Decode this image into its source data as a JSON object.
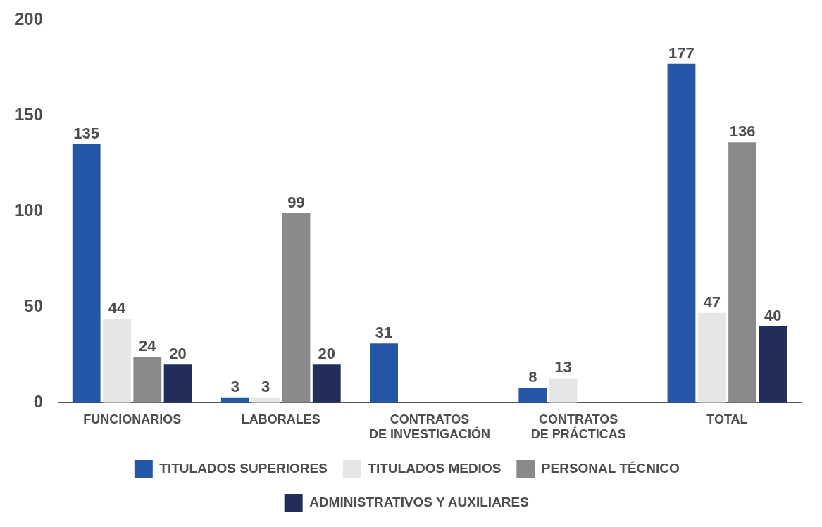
{
  "chart_data": {
    "type": "bar",
    "categories": [
      "FUNCIONARIOS",
      "LABORALES",
      "CONTRATOS DE INVESTIGACIÓN",
      "CONTRATOS DE PRÁCTICAS",
      "TOTAL"
    ],
    "series": [
      {
        "name": "TITULADOS SUPERIORES",
        "color": "#2657a6",
        "values": [
          135,
          3,
          31,
          8,
          177
        ],
        "value_labels": [
          "135",
          "3",
          "31",
          "8",
          "177"
        ]
      },
      {
        "name": "TITULADOS MEDIOS",
        "color": "#e6e6e6",
        "values": [
          44,
          3,
          0,
          13,
          47
        ],
        "value_labels": [
          "44",
          "3",
          null,
          "13",
          "47"
        ]
      },
      {
        "name": "PERSONAL TÉCNICO",
        "color": "#8a898b",
        "values": [
          24,
          99,
          0,
          0,
          136
        ],
        "value_labels": [
          "24",
          "99",
          null,
          null,
          "136"
        ]
      },
      {
        "name": "ADMINISTRATIVOS Y AUXILIARES",
        "color": "#222d59",
        "values": [
          20,
          20,
          0,
          0,
          40
        ],
        "value_labels": [
          "20",
          "20",
          null,
          null,
          "40"
        ]
      }
    ],
    "ylim": [
      0,
      200
    ],
    "yticks": [
      0,
      50,
      100,
      150,
      200
    ],
    "grid": false,
    "legend": "bottom"
  }
}
